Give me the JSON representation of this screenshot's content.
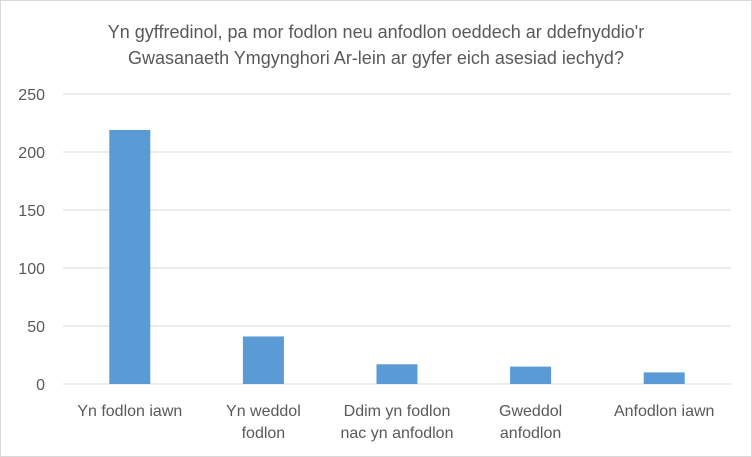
{
  "chart_data": {
    "type": "bar",
    "title_lines": [
      "Yn gyffredinol, pa mor fodlon neu anfodlon oeddech ar ddefnyddio'r",
      "Gwasanaeth Ymgynghori Ar-lein ar gyfer eich asesiad iechyd?"
    ],
    "categories": [
      [
        "Yn fodlon iawn"
      ],
      [
        "Yn weddol",
        "fodlon"
      ],
      [
        "Ddim yn fodlon",
        "nac yn anfodlon"
      ],
      [
        "Gweddol",
        "anfodlon"
      ],
      [
        "Anfodlon iawn"
      ]
    ],
    "values": [
      219,
      41,
      17,
      15,
      10
    ],
    "ylim": [
      0,
      250
    ],
    "yticks": [
      0,
      50,
      100,
      150,
      200,
      250
    ],
    "grid": true,
    "colors": {
      "bar": "#5b9bd5",
      "grid": "#d9d9d9",
      "text": "#595959"
    }
  }
}
